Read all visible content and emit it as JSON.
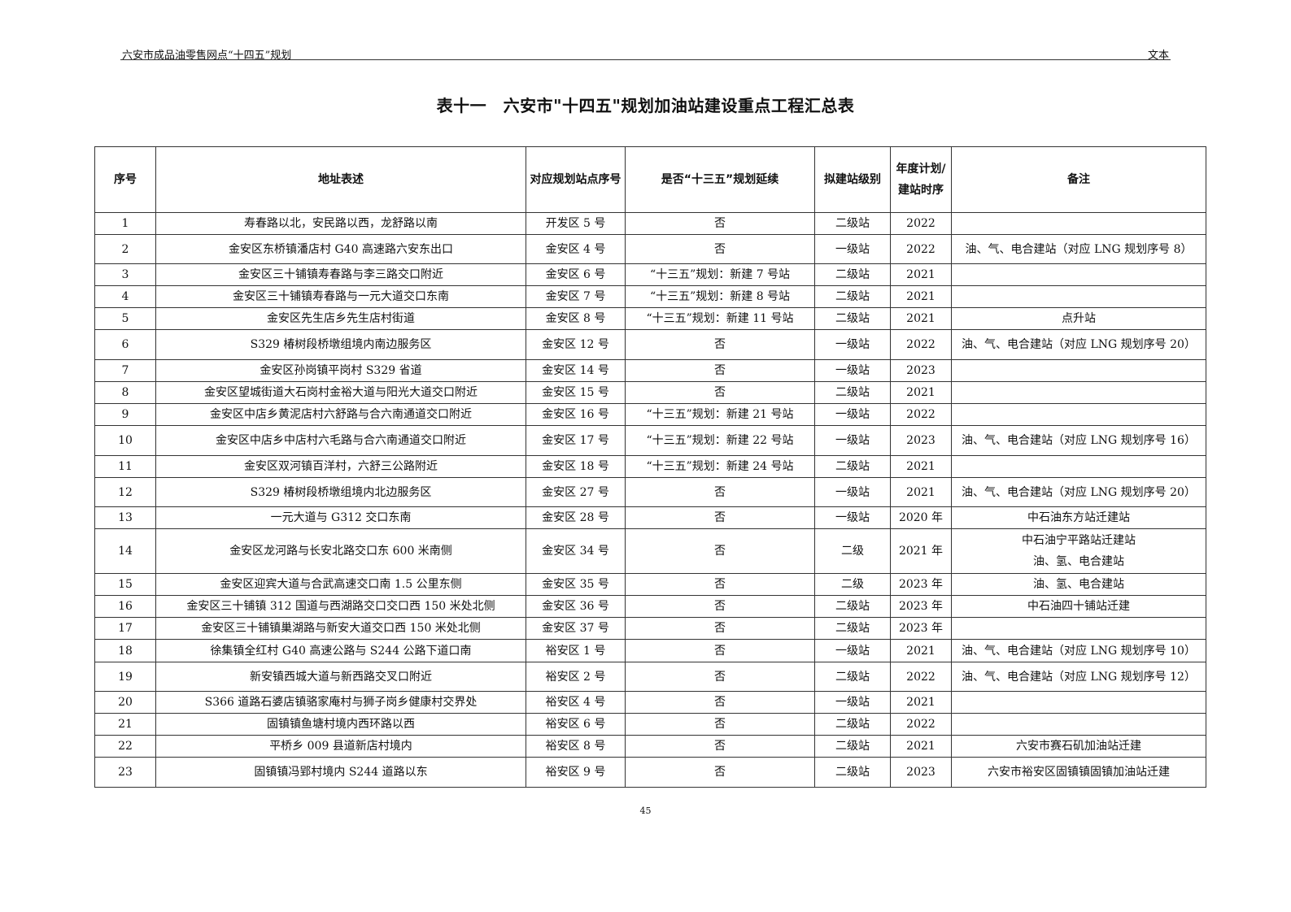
{
  "header": {
    "left": "六安市成品油零售网点“十四五”规划",
    "right": "文本"
  },
  "title": "表十一　六安市\"十四五\"规划加油站建设重点工程汇总表",
  "table": {
    "columns": [
      "序号",
      "地址表述",
      "对应规划站点序号",
      "是否“十三五”规划延续",
      "拟建站级别",
      "年度计划/建站时序",
      "备注"
    ],
    "rows": [
      [
        "1",
        "寿春路以北，安民路以西，龙舒路以南",
        "开发区 5 号",
        "否",
        "二级站",
        "2022",
        ""
      ],
      [
        "2",
        "金安区东桥镇潘店村 G40 高速路六安东出口",
        "金安区 4 号",
        "否",
        "一级站",
        "2022",
        "油、气、电合建站（对应 LNG 规划序号 8）"
      ],
      [
        "3",
        "金安区三十铺镇寿春路与李三路交口附近",
        "金安区 6 号",
        "“十三五”规划：新建 7 号站",
        "二级站",
        "2021",
        ""
      ],
      [
        "4",
        "金安区三十铺镇寿春路与一元大道交口东南",
        "金安区 7 号",
        "“十三五”规划：新建 8 号站",
        "二级站",
        "2021",
        ""
      ],
      [
        "5",
        "金安区先生店乡先生店村街道",
        "金安区 8 号",
        "“十三五”规划：新建 11 号站",
        "二级站",
        "2021",
        "点升站"
      ],
      [
        "6",
        "S329 椿树段桥墩组境内南边服务区",
        "金安区 12 号",
        "否",
        "一级站",
        "2022",
        "油、气、电合建站（对应 LNG 规划序号 20）"
      ],
      [
        "7",
        "金安区孙岗镇平岗村 S329 省道",
        "金安区 14 号",
        "否",
        "一级站",
        "2023",
        ""
      ],
      [
        "8",
        "金安区望城街道大石岗村金裕大道与阳光大道交口附近",
        "金安区 15 号",
        "否",
        "二级站",
        "2021",
        ""
      ],
      [
        "9",
        "金安区中店乡黄泥店村六舒路与合六南通道交口附近",
        "金安区 16 号",
        "“十三五”规划：新建 21 号站",
        "一级站",
        "2022",
        ""
      ],
      [
        "10",
        "金安区中店乡中店村六毛路与合六南通道交口附近",
        "金安区 17 号",
        "“十三五”规划：新建 22 号站",
        "一级站",
        "2023",
        "油、气、电合建站（对应 LNG 规划序号 16）"
      ],
      [
        "11",
        "金安区双河镇百洋村，六舒三公路附近",
        "金安区 18 号",
        "“十三五”规划：新建 24 号站",
        "二级站",
        "2021",
        ""
      ],
      [
        "12",
        "S329 椿树段桥墩组境内北边服务区",
        "金安区 27 号",
        "否",
        "一级站",
        "2021",
        "油、气、电合建站（对应 LNG 规划序号 20）"
      ],
      [
        "13",
        "一元大道与 G312 交口东南",
        "金安区 28 号",
        "否",
        "一级站",
        "2020 年",
        "中石油东方站迁建站"
      ],
      [
        "14",
        "金安区龙河路与长安北路交口东 600 米南侧",
        "金安区 34 号",
        "否",
        "二级",
        "2021 年",
        "中石油宁平路站迁建站\n油、氢、电合建站"
      ],
      [
        "15",
        "金安区迎宾大道与合武高速交口南 1.5 公里东侧",
        "金安区 35 号",
        "否",
        "二级",
        "2023 年",
        "油、氢、电合建站"
      ],
      [
        "16",
        "金安区三十铺镇 312 国道与西湖路交口交口西 150 米处北侧",
        "金安区 36 号",
        "否",
        "二级站",
        "2023 年",
        "中石油四十铺站迁建"
      ],
      [
        "17",
        "金安区三十铺镇巢湖路与新安大道交口西 150 米处北侧",
        "金安区 37 号",
        "否",
        "二级站",
        "2023 年",
        ""
      ],
      [
        "18",
        "徐集镇全红村 G40 高速公路与 S244 公路下道口南",
        "裕安区 1 号",
        "否",
        "一级站",
        "2021",
        "油、气、电合建站（对应 LNG 规划序号 10）"
      ],
      [
        "19",
        "新安镇西城大道与新西路交叉口附近",
        "裕安区 2 号",
        "否",
        "二级站",
        "2022",
        "油、气、电合建站（对应 LNG 规划序号 12）"
      ],
      [
        "20",
        "S366 道路石婆店镇骆家庵村与狮子岗乡健康村交界处",
        "裕安区 4 号",
        "否",
        "一级站",
        "2021",
        ""
      ],
      [
        "21",
        "固镇镇鱼塘村境内西环路以西",
        "裕安区 6 号",
        "否",
        "二级站",
        "2022",
        ""
      ],
      [
        "22",
        "平桥乡 009 县道新店村境内",
        "裕安区 8 号",
        "否",
        "二级站",
        "2021",
        "六安市赛石矶加油站迁建"
      ],
      [
        "23",
        "固镇镇冯郢村境内 S244 道路以东",
        "裕安区 9 号",
        "否",
        "二级站",
        "2023",
        "六安市裕安区固镇镇固镇加油站迁建"
      ]
    ]
  },
  "page_number": "45"
}
